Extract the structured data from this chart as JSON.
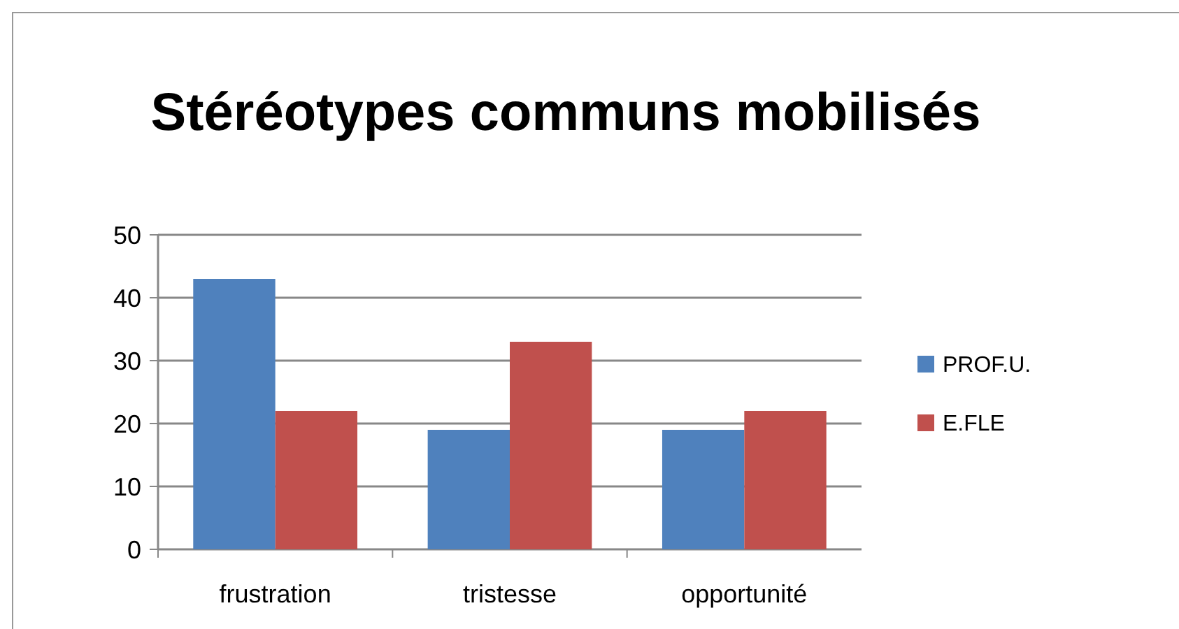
{
  "chart_data": {
    "type": "bar",
    "title": "Stéréotypes communs mobilisés",
    "categories": [
      "frustration",
      "tristesse",
      "opportunité"
    ],
    "series": [
      {
        "name": "PROF.U.",
        "color": "#4f81bd",
        "values": [
          43,
          19,
          19
        ]
      },
      {
        "name": "E.FLE",
        "color": "#c0504d",
        "values": [
          22,
          33,
          22
        ]
      }
    ],
    "ylim": [
      0,
      50
    ],
    "yticks": [
      0,
      10,
      20,
      30,
      40,
      50
    ],
    "grid": "y",
    "legend": "right"
  }
}
